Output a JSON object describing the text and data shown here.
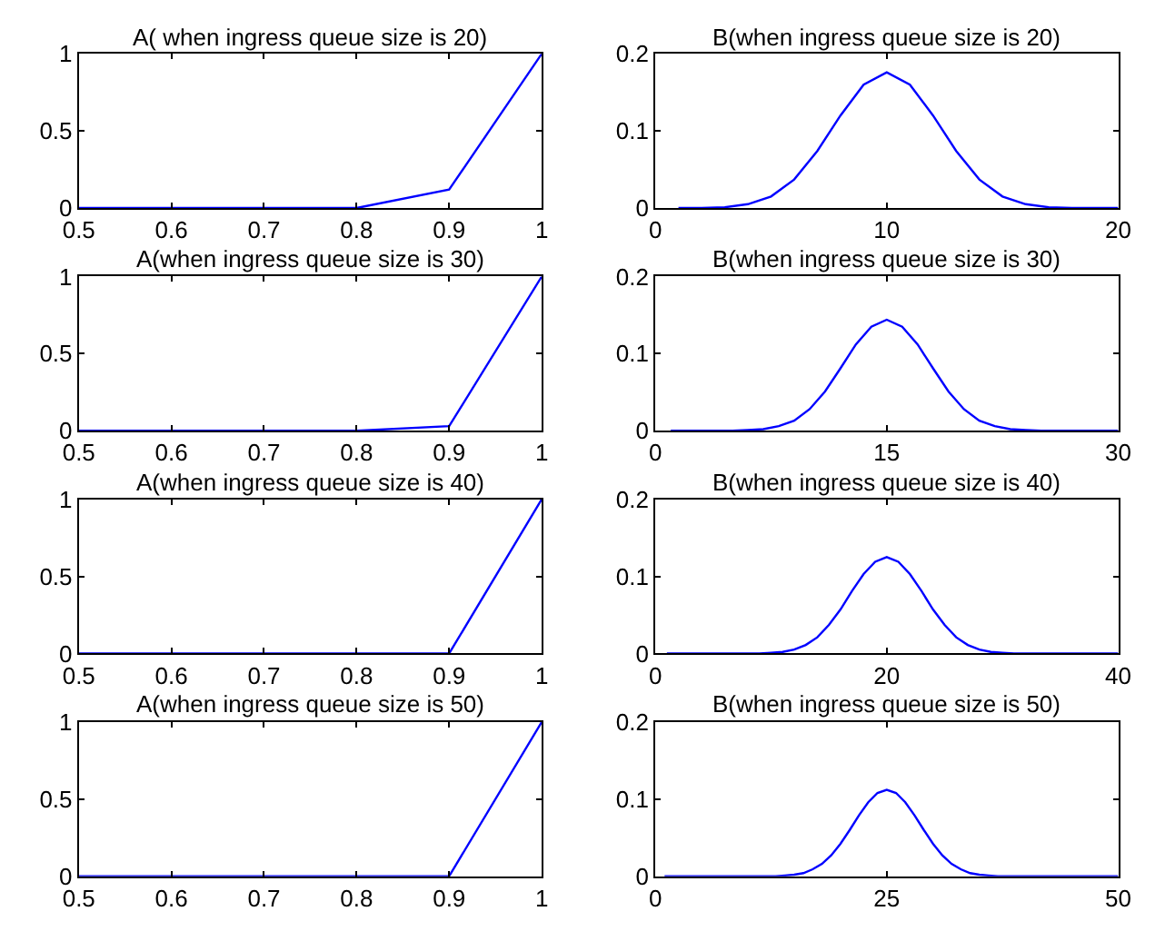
{
  "chart_data": [
    {
      "type": "line",
      "title": "A( when ingress queue size is 20)",
      "x": [
        0.5,
        0.6,
        0.7,
        0.8,
        0.9,
        1
      ],
      "series": [
        {
          "color": "#0000ff",
          "values": [
            0,
            0,
            0,
            0,
            0.12,
            1
          ]
        }
      ],
      "xlim": [
        0.5,
        1
      ],
      "xticks": [
        0.5,
        0.6,
        0.7,
        0.8,
        0.9,
        1
      ],
      "ylim": [
        0,
        1
      ],
      "yticks": [
        0,
        0.5,
        1
      ]
    },
    {
      "type": "line",
      "title": "B(when ingress queue size is 20)",
      "x": [
        1,
        2,
        3,
        4,
        5,
        6,
        7,
        8,
        9,
        10,
        11,
        12,
        13,
        14,
        15,
        16,
        17,
        18,
        19,
        20
      ],
      "series": [
        {
          "color": "#0000ff",
          "values": [
            0,
            0,
            0.001,
            0.005,
            0.015,
            0.037,
            0.074,
            0.12,
            0.16,
            0.176,
            0.16,
            0.12,
            0.074,
            0.037,
            0.015,
            0.005,
            0.001,
            0,
            0,
            0
          ]
        }
      ],
      "xlim": [
        0,
        20
      ],
      "xticks": [
        0,
        10,
        20
      ],
      "ylim": [
        0,
        0.2
      ],
      "yticks": [
        0,
        0.1,
        0.2
      ]
    },
    {
      "type": "line",
      "title": "A(when ingress queue size is 30)",
      "x": [
        0.5,
        0.6,
        0.7,
        0.8,
        0.9,
        1
      ],
      "series": [
        {
          "color": "#0000ff",
          "values": [
            0,
            0,
            0,
            0,
            0.03,
            1
          ]
        }
      ],
      "xlim": [
        0.5,
        1
      ],
      "xticks": [
        0.5,
        0.6,
        0.7,
        0.8,
        0.9,
        1
      ],
      "ylim": [
        0,
        1
      ],
      "yticks": [
        0,
        0.5,
        1
      ]
    },
    {
      "type": "line",
      "title": "B(when ingress queue size is 30)",
      "x": [
        1,
        2,
        3,
        4,
        5,
        6,
        7,
        8,
        9,
        10,
        11,
        12,
        13,
        14,
        15,
        16,
        17,
        18,
        19,
        20,
        21,
        22,
        23,
        24,
        25,
        26,
        27,
        28,
        29,
        30
      ],
      "series": [
        {
          "color": "#0000ff",
          "values": [
            0,
            0,
            0,
            0,
            0,
            0.001,
            0.002,
            0.006,
            0.013,
            0.028,
            0.051,
            0.081,
            0.112,
            0.135,
            0.144,
            0.135,
            0.112,
            0.081,
            0.051,
            0.028,
            0.013,
            0.006,
            0.002,
            0.001,
            0,
            0,
            0,
            0,
            0,
            0
          ]
        }
      ],
      "xlim": [
        0,
        30
      ],
      "xticks": [
        0,
        15,
        30
      ],
      "ylim": [
        0,
        0.2
      ],
      "yticks": [
        0,
        0.1,
        0.2
      ]
    },
    {
      "type": "line",
      "title": "A(when ingress queue size is 40)",
      "x": [
        0.5,
        0.6,
        0.7,
        0.8,
        0.9,
        1
      ],
      "series": [
        {
          "color": "#0000ff",
          "values": [
            0,
            0,
            0,
            0,
            0,
            1
          ]
        }
      ],
      "xlim": [
        0.5,
        1
      ],
      "xticks": [
        0.5,
        0.6,
        0.7,
        0.8,
        0.9,
        1
      ],
      "ylim": [
        0,
        1
      ],
      "yticks": [
        0,
        0.5,
        1
      ]
    },
    {
      "type": "line",
      "title": "B(when ingress queue size is 40)",
      "x": [
        1,
        2,
        3,
        4,
        5,
        6,
        7,
        8,
        9,
        10,
        11,
        12,
        13,
        14,
        15,
        16,
        17,
        18,
        19,
        20,
        21,
        22,
        23,
        24,
        25,
        26,
        27,
        28,
        29,
        30,
        31,
        32,
        33,
        34,
        35,
        36,
        37,
        38,
        39,
        40
      ],
      "series": [
        {
          "color": "#0000ff",
          "values": [
            0,
            0,
            0,
            0,
            0,
            0,
            0,
            0,
            0,
            0.001,
            0.002,
            0.005,
            0.011,
            0.021,
            0.037,
            0.057,
            0.081,
            0.103,
            0.119,
            0.125,
            0.119,
            0.103,
            0.081,
            0.057,
            0.037,
            0.021,
            0.011,
            0.005,
            0.002,
            0.001,
            0,
            0,
            0,
            0,
            0,
            0,
            0,
            0,
            0,
            0
          ]
        }
      ],
      "xlim": [
        0,
        40
      ],
      "xticks": [
        0,
        20,
        40
      ],
      "ylim": [
        0,
        0.2
      ],
      "yticks": [
        0,
        0.1,
        0.2
      ]
    },
    {
      "type": "line",
      "title": "A(when ingress queue size is 50)",
      "x": [
        0.5,
        0.6,
        0.7,
        0.8,
        0.9,
        1
      ],
      "series": [
        {
          "color": "#0000ff",
          "values": [
            0,
            0,
            0,
            0,
            0,
            1
          ]
        }
      ],
      "xlim": [
        0.5,
        1
      ],
      "xticks": [
        0.5,
        0.6,
        0.7,
        0.8,
        0.9,
        1
      ],
      "ylim": [
        0,
        1
      ],
      "yticks": [
        0,
        0.5,
        1
      ]
    },
    {
      "type": "line",
      "title": "B(when ingress queue size is 50)",
      "x": [
        1,
        2,
        3,
        4,
        5,
        6,
        7,
        8,
        9,
        10,
        11,
        12,
        13,
        14,
        15,
        16,
        17,
        18,
        19,
        20,
        21,
        22,
        23,
        24,
        25,
        26,
        27,
        28,
        29,
        30,
        31,
        32,
        33,
        34,
        35,
        36,
        37,
        38,
        39,
        40,
        41,
        42,
        43,
        44,
        45,
        46,
        47,
        48,
        49,
        50
      ],
      "series": [
        {
          "color": "#0000ff",
          "values": [
            0,
            0,
            0,
            0,
            0,
            0,
            0,
            0,
            0,
            0,
            0,
            0,
            0,
            0.001,
            0.002,
            0.004,
            0.009,
            0.016,
            0.027,
            0.042,
            0.06,
            0.079,
            0.096,
            0.108,
            0.112,
            0.108,
            0.096,
            0.079,
            0.06,
            0.042,
            0.027,
            0.016,
            0.009,
            0.004,
            0.002,
            0.001,
            0,
            0,
            0,
            0,
            0,
            0,
            0,
            0,
            0,
            0,
            0,
            0,
            0,
            0
          ]
        }
      ],
      "xlim": [
        0,
        50
      ],
      "xticks": [
        0,
        25,
        50
      ],
      "ylim": [
        0,
        0.2
      ],
      "yticks": [
        0,
        0.1,
        0.2
      ]
    }
  ]
}
